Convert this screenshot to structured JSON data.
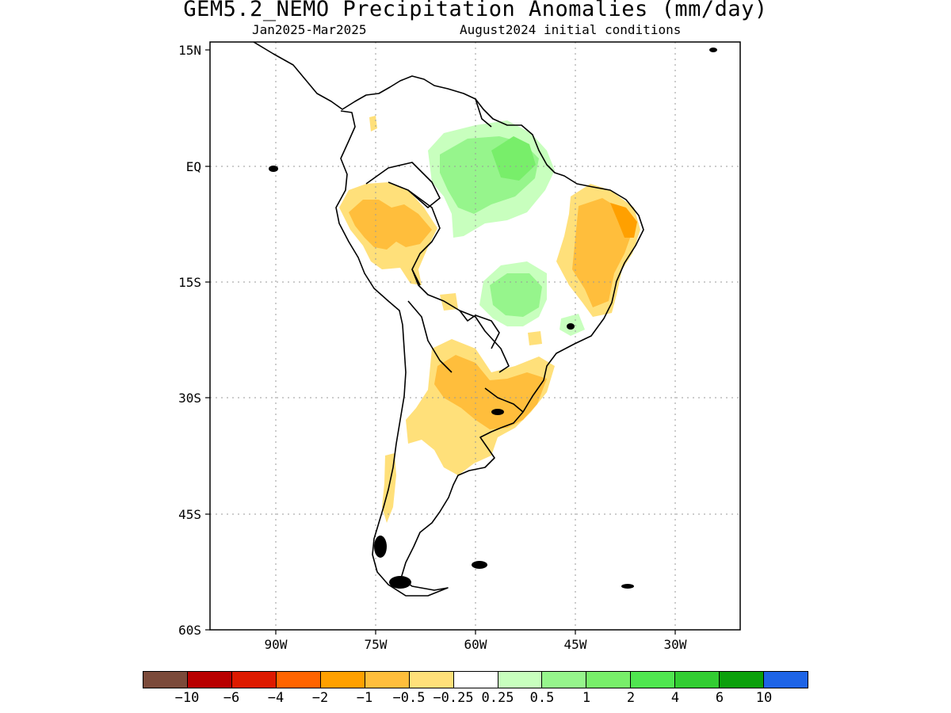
{
  "header": {
    "title": "GEM5.2_NEMO Precipitation Anomalies (mm/day)",
    "period": "Jan2025-Mar2025",
    "initial_conditions": "August2024 initial conditions"
  },
  "axes": {
    "lat_labels": [
      "15N",
      "EQ",
      "15S",
      "30S",
      "45S",
      "60S"
    ],
    "lon_labels": [
      "90W",
      "75W",
      "60W",
      "45W",
      "30W"
    ]
  },
  "map": {
    "region": "South America",
    "lat_range": [
      -60,
      15
    ],
    "lon_range": [
      -100,
      -20
    ]
  },
  "colorbar": {
    "colors": [
      "#7b4a3a",
      "#b80000",
      "#dd1a00",
      "#ff6400",
      "#ffa000",
      "#ffbe3c",
      "#ffe07a",
      "#ffffff",
      "#c8ffbe",
      "#96f58c",
      "#78ee6a",
      "#50e650",
      "#32cd32",
      "#0ca00c",
      "#1e64e6"
    ],
    "tick_labels": [
      "-10",
      "-6",
      "-4",
      "-2",
      "-1",
      "-0.5",
      "-0.25",
      "0.25",
      "0.5",
      "1",
      "2",
      "4",
      "6",
      "10"
    ]
  }
}
